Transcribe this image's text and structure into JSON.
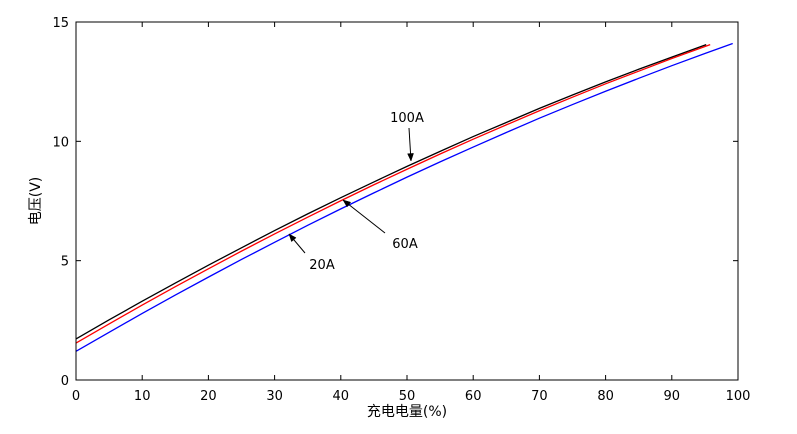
{
  "chart_data": {
    "type": "line",
    "xlabel": "充电电量(%)",
    "ylabel": "电压(V)",
    "xlim": [
      0,
      100
    ],
    "ylim": [
      0,
      15
    ],
    "xticks": [
      0,
      10,
      20,
      30,
      40,
      50,
      60,
      70,
      80,
      90,
      100
    ],
    "yticks": [
      0,
      5,
      10,
      15
    ],
    "grid": false,
    "series": [
      {
        "name": "100A",
        "color": "#000000",
        "x": [
          0,
          5,
          10,
          15,
          20,
          25,
          30,
          35,
          40,
          45,
          50,
          55,
          60,
          65,
          70,
          75,
          80,
          85,
          90,
          95.2
        ],
        "y": [
          1.72,
          2.52,
          3.3,
          4.06,
          4.81,
          5.54,
          6.26,
          6.96,
          7.64,
          8.3,
          8.95,
          9.58,
          10.2,
          10.79,
          11.38,
          11.94,
          12.49,
          13.02,
          13.53,
          14.05
        ]
      },
      {
        "name": "60A",
        "color": "#ff0000",
        "x": [
          0,
          5,
          10,
          15,
          20,
          25,
          30,
          35,
          40,
          45,
          50,
          55,
          60,
          65,
          70,
          75,
          80,
          85,
          90,
          95.8
        ],
        "y": [
          1.55,
          2.35,
          3.14,
          3.91,
          4.66,
          5.4,
          6.12,
          6.82,
          7.51,
          8.18,
          8.83,
          9.47,
          10.09,
          10.69,
          11.28,
          11.85,
          12.41,
          12.94,
          13.47,
          14.05
        ]
      },
      {
        "name": "20A",
        "color": "#0000ff",
        "x": [
          0,
          5,
          10,
          15,
          20,
          25,
          30,
          35,
          40,
          45,
          50,
          55,
          60,
          65,
          70,
          75,
          80,
          85,
          90,
          95,
          99.2
        ],
        "y": [
          1.2,
          2.0,
          2.79,
          3.56,
          4.31,
          5.05,
          5.77,
          6.48,
          7.17,
          7.84,
          8.5,
          9.14,
          9.76,
          10.37,
          10.97,
          11.54,
          12.1,
          12.64,
          13.17,
          13.68,
          14.1
        ]
      }
    ]
  }
}
